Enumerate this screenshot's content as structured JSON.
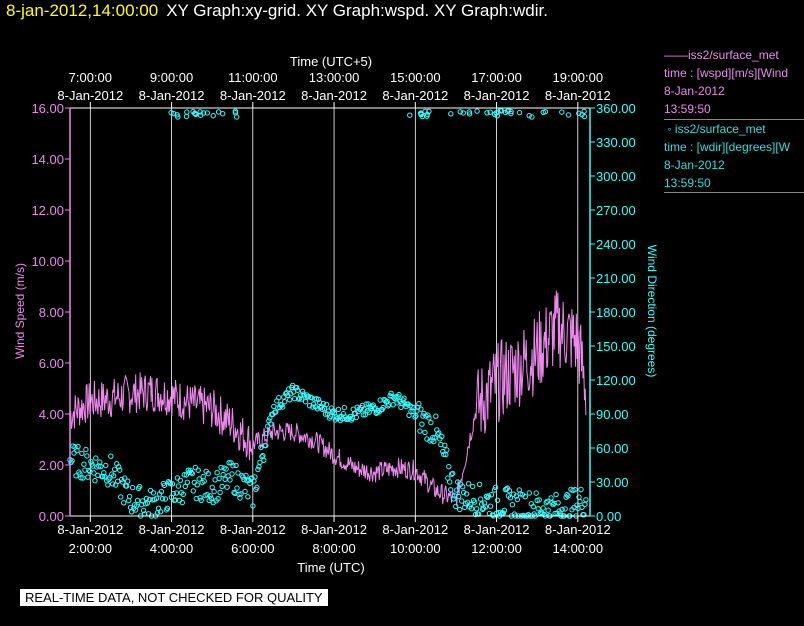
{
  "header": {
    "time": "8-jan-2012,14:00:00",
    "graphs": "XY Graph:xy-grid.  XY Graph:wspd.  XY Graph:wdir."
  },
  "disclaimer": "REAL-TIME DATA, NOT CHECKED FOR QUALITY",
  "legend": {
    "wspd": {
      "name": "iss2/surface_met",
      "field": "time : [wspd][m/s][Wind",
      "date": "8-Jan-2012",
      "time": "13:59:50"
    },
    "wdir": {
      "name": "iss2/surface_met",
      "field": "time : [wdir][degrees][W",
      "date": "8-Jan-2012",
      "time": "13:59:50"
    }
  },
  "colors": {
    "wspd": "#ee88ee",
    "wdir": "#33ffff",
    "grid": "#ffffff",
    "axis_text": "#ffffff",
    "background": "#000000"
  },
  "chart_data": {
    "type": "line",
    "x_top_label": "Time (UTC+5)",
    "x_bottom_label": "Time (UTC)",
    "y_left_label": "Wind Speed (m/s)",
    "y_right_label": "Wind Direction (degrees)",
    "x_range_utc_hours": [
      1.5,
      14.3
    ],
    "x_ticks_bottom": [
      {
        "x": 2,
        "date": "8-Jan-2012",
        "time": "2:00:00"
      },
      {
        "x": 4,
        "date": "8-Jan-2012",
        "time": "4:00:00"
      },
      {
        "x": 6,
        "date": "8-Jan-2012",
        "time": "6:00:00"
      },
      {
        "x": 8,
        "date": "8-Jan-2012",
        "time": "8:00:00"
      },
      {
        "x": 10,
        "date": "8-Jan-2012",
        "time": "10:00:00"
      },
      {
        "x": 12,
        "date": "8-Jan-2012",
        "time": "12:00:00"
      },
      {
        "x": 14,
        "date": "8-Jan-2012",
        "time": "14:00:00"
      }
    ],
    "x_ticks_top": [
      {
        "x": 2,
        "time": "7:00:00",
        "date": "8-Jan-2012"
      },
      {
        "x": 4,
        "time": "9:00:00",
        "date": "8-Jan-2012"
      },
      {
        "x": 6,
        "time": "11:00:00",
        "date": "8-Jan-2012"
      },
      {
        "x": 8,
        "time": "13:00:00",
        "date": "8-Jan-2012"
      },
      {
        "x": 10,
        "time": "15:00:00",
        "date": "8-Jan-2012"
      },
      {
        "x": 12,
        "time": "17:00:00",
        "date": "8-Jan-2012"
      },
      {
        "x": 14,
        "time": "19:00:00",
        "date": "8-Jan-2012"
      }
    ],
    "y_left_range": [
      0,
      16
    ],
    "y_left_ticks": [
      "0.00",
      "2.00",
      "4.00",
      "6.00",
      "8.00",
      "10.00",
      "12.00",
      "14.00",
      "16.00"
    ],
    "y_right_range": [
      0,
      360
    ],
    "y_right_ticks": [
      "0.00",
      "30.00",
      "60.00",
      "90.00",
      "120.00",
      "150.00",
      "180.00",
      "210.00",
      "240.00",
      "270.00",
      "300.00",
      "330.00",
      "360.00"
    ],
    "grid": "vertical",
    "series": [
      {
        "name": "iss2/surface_met",
        "field": "wspd",
        "axis": "left",
        "style": "line",
        "x": [
          1.5,
          2.0,
          2.5,
          3.0,
          3.5,
          4.0,
          4.5,
          5.0,
          5.5,
          6.0,
          6.5,
          7.0,
          7.5,
          8.0,
          8.5,
          9.0,
          9.5,
          10.0,
          10.5,
          11.0,
          11.5,
          12.0,
          12.5,
          13.0,
          13.5,
          14.0,
          14.2
        ],
        "values": [
          4.0,
          4.5,
          4.6,
          4.8,
          4.9,
          4.7,
          4.4,
          4.2,
          3.6,
          2.8,
          3.3,
          3.3,
          3.0,
          2.4,
          1.9,
          1.7,
          1.9,
          1.8,
          1.0,
          0.6,
          4.2,
          5.2,
          5.8,
          6.4,
          7.4,
          6.8,
          5.0
        ]
      },
      {
        "name": "iss2/surface_met",
        "field": "wdir",
        "axis": "right",
        "style": "markers",
        "x": [
          1.5,
          2.0,
          2.5,
          3.0,
          3.5,
          4.0,
          4.5,
          5.0,
          5.5,
          6.0,
          6.5,
          7.0,
          7.5,
          8.0,
          8.5,
          9.0,
          9.5,
          10.0,
          10.5,
          11.0,
          11.5,
          12.0,
          12.5,
          13.0,
          13.5,
          14.0,
          14.2
        ],
        "values": [
          50,
          45,
          40,
          15,
          10,
          20,
          30,
          25,
          35,
          20,
          95,
          110,
          100,
          90,
          90,
          95,
          105,
          90,
          75,
          20,
          15,
          12,
          10,
          8,
          6,
          12,
          14
        ]
      }
    ]
  }
}
